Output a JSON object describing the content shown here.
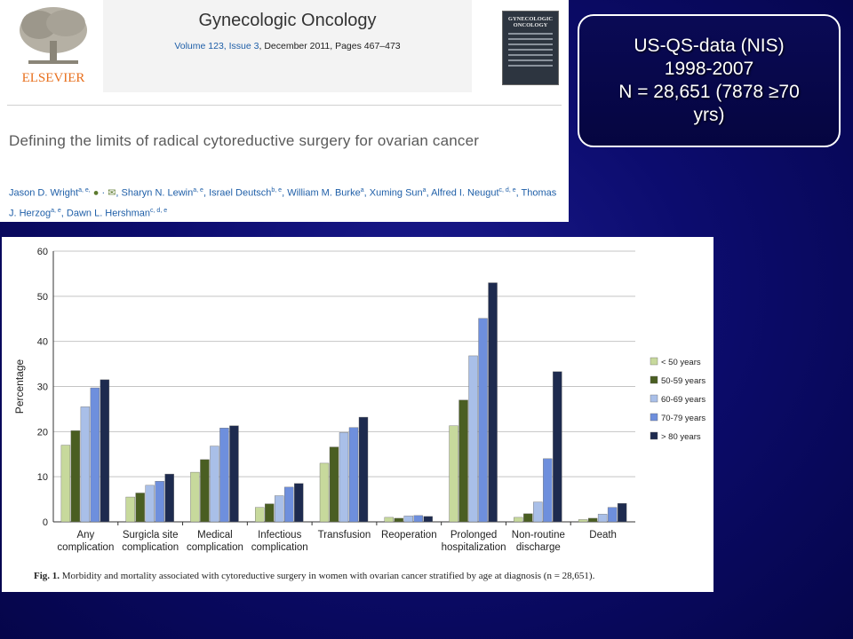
{
  "journal": {
    "publisher": "ELSEVIER",
    "title": "Gynecologic Oncology",
    "citation_prefix": "Volume 123, Issue 3",
    "citation_rest": ", December 2011, Pages 467–473",
    "cover_title": "GYNECOLOGIC\nONCOLOGY"
  },
  "article": {
    "title": "Defining the limits of radical cytoreductive surgery for ovarian cancer",
    "authors": [
      {
        "name": "Jason D. Wright",
        "sup": "a, e,"
      },
      {
        "name": "Sharyn N. Lewin",
        "sup": "a, e"
      },
      {
        "name": "Israel Deutsch",
        "sup": "b, e"
      },
      {
        "name": "William M. Burke",
        "sup": "a"
      },
      {
        "name": "Xuming Sun",
        "sup": "a"
      },
      {
        "name": "Alfred I. Neugut",
        "sup": "c, d, e"
      },
      {
        "name": "Thomas J. Herzog",
        "sup": "a, e"
      },
      {
        "name": "Dawn L. Hershman",
        "sup": "c, d, e"
      }
    ]
  },
  "callout": {
    "text": "US-QS-data (NIS)\n1998-2007\nN = 28,651 (7878 ≥70\nyrs)"
  },
  "figure": {
    "caption_label": "Fig. 1.",
    "caption_text": " Morbidity and mortality associated with cytoreductive surgery in women with ovarian cancer stratified by age at diagnosis (n = 28,651)."
  },
  "chart_data": {
    "type": "bar",
    "title": "",
    "xlabel": "",
    "ylabel": "Percentage",
    "ylim": [
      0,
      60
    ],
    "yticks": [
      0,
      10,
      20,
      30,
      40,
      50,
      60
    ],
    "grid": true,
    "legend_position": "right",
    "categories": [
      [
        "Any",
        "complication"
      ],
      [
        "Surgicla site",
        "complication"
      ],
      [
        "Medical",
        "complication"
      ],
      [
        "Infectious",
        "complication"
      ],
      [
        "Transfusion"
      ],
      [
        "Reoperation"
      ],
      [
        "Prolonged",
        "hospitalization"
      ],
      [
        "Non-routine",
        "discharge"
      ],
      [
        "Death"
      ]
    ],
    "series": [
      {
        "name": "< 50 years",
        "color": "#c7d99c",
        "values": [
          17.0,
          5.5,
          11.0,
          3.2,
          13.0,
          1.0,
          21.3,
          1.0,
          0.5
        ]
      },
      {
        "name": "50-59 years",
        "color": "#4a5e22",
        "values": [
          20.2,
          6.4,
          13.8,
          4.0,
          16.6,
          0.8,
          27.0,
          1.8,
          0.8
        ]
      },
      {
        "name": "60-69 years",
        "color": "#a9bfe8",
        "values": [
          25.5,
          8.1,
          16.8,
          5.8,
          19.8,
          1.3,
          36.8,
          4.4,
          1.7
        ]
      },
      {
        "name": "70-79 years",
        "color": "#6e8fdd",
        "values": [
          29.7,
          9.0,
          20.8,
          7.7,
          20.9,
          1.4,
          45.1,
          14.0,
          3.2
        ]
      },
      {
        "name": "> 80 years",
        "color": "#1e2b4f",
        "values": [
          31.5,
          10.6,
          21.3,
          8.5,
          23.2,
          1.2,
          53.0,
          33.3,
          4.1
        ]
      }
    ]
  }
}
